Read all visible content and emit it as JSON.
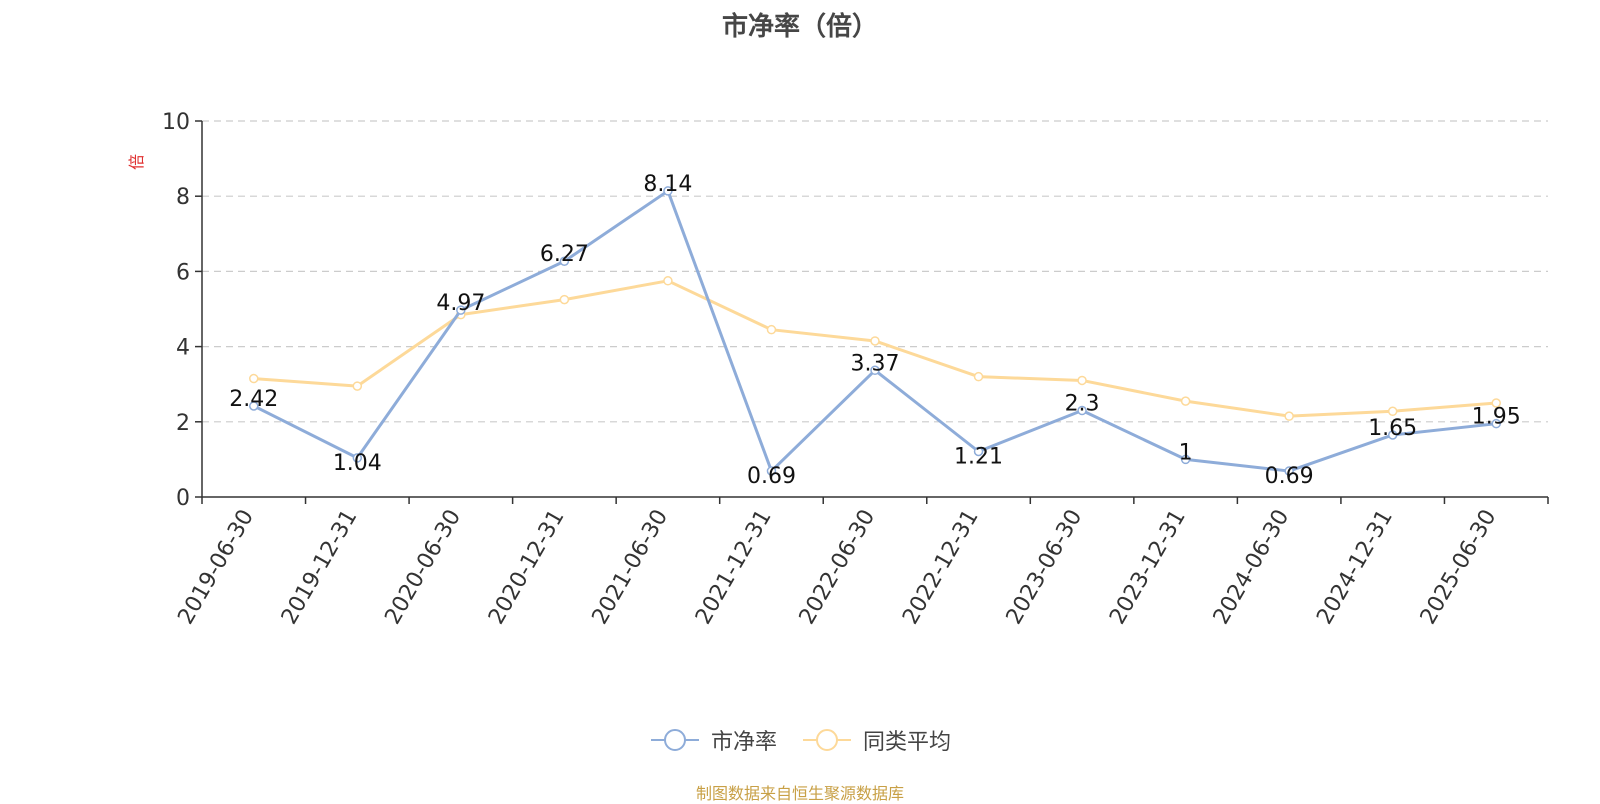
{
  "chart_data": {
    "type": "line",
    "title": "市净率（倍）",
    "ylabel": "倍",
    "ylim": [
      0,
      10
    ],
    "yticks": [
      0,
      2,
      4,
      6,
      8,
      10
    ],
    "grid": true,
    "legend_position": "bottom",
    "categories": [
      "2019-06-30",
      "2019-12-31",
      "2020-06-30",
      "2020-12-31",
      "2021-06-30",
      "2021-12-31",
      "2022-06-30",
      "2022-12-31",
      "2023-06-30",
      "2023-12-31",
      "2024-06-30",
      "2024-12-31",
      "2025-06-30"
    ],
    "series": [
      {
        "name": "市净率",
        "color": "#8eacd9",
        "values": [
          2.42,
          1.04,
          4.97,
          6.27,
          8.14,
          0.69,
          3.37,
          1.21,
          2.3,
          1,
          0.69,
          1.65,
          1.95
        ],
        "labels": [
          "2.42",
          "1.04",
          "4.97",
          "6.27",
          "8.14",
          "0.69",
          "3.37",
          "1.21",
          "2.3",
          "1",
          "0.69",
          "1.65",
          "1.95"
        ]
      },
      {
        "name": "同类平均",
        "color": "#fdd999",
        "values": [
          3.15,
          2.95,
          4.85,
          5.25,
          5.75,
          4.45,
          4.15,
          3.2,
          3.1,
          2.55,
          2.15,
          2.28,
          2.5
        ]
      }
    ]
  },
  "footer": {
    "source": "制图数据来自恒生聚源数据库"
  }
}
